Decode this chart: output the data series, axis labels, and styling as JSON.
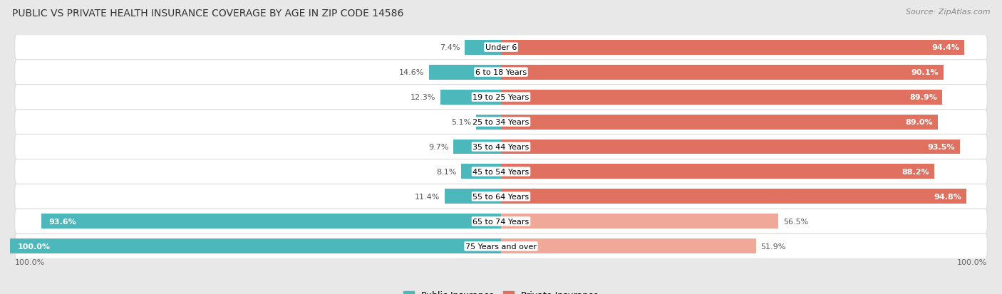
{
  "title": "PUBLIC VS PRIVATE HEALTH INSURANCE COVERAGE BY AGE IN ZIP CODE 14586",
  "source": "Source: ZipAtlas.com",
  "categories": [
    "Under 6",
    "6 to 18 Years",
    "19 to 25 Years",
    "25 to 34 Years",
    "35 to 44 Years",
    "45 to 54 Years",
    "55 to 64 Years",
    "65 to 74 Years",
    "75 Years and over"
  ],
  "public_values": [
    7.4,
    14.6,
    12.3,
    5.1,
    9.7,
    8.1,
    11.4,
    93.6,
    100.0
  ],
  "private_values": [
    94.4,
    90.1,
    89.9,
    89.0,
    93.5,
    88.2,
    94.8,
    56.5,
    51.9
  ],
  "public_color": "#4db8bc",
  "private_color_dark": "#e07060",
  "private_color_light": "#f0a898",
  "row_bg_color": "#f5f5f5",
  "row_border_color": "#dddddd",
  "background_color": "#e8e8e8",
  "bar_height": 0.6,
  "max_value": 100.0,
  "legend_public": "Public Insurance",
  "legend_private": "Private Insurance",
  "title_fontsize": 10,
  "source_fontsize": 8,
  "label_fontsize": 8,
  "category_fontsize": 8,
  "axis_label_fontsize": 8
}
